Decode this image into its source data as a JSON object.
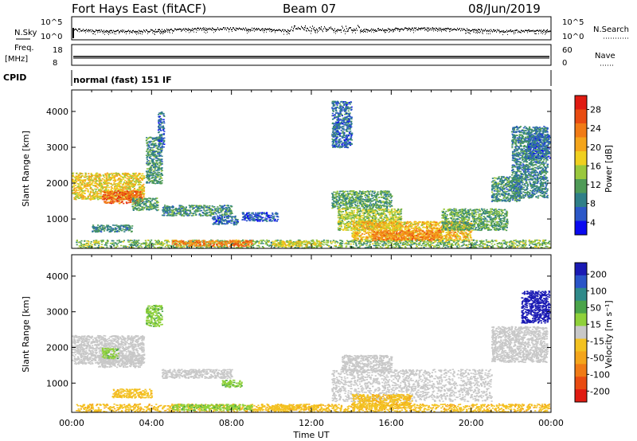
{
  "header": {
    "title": "Fort Hays East (fitACF)",
    "beam": "Beam 07",
    "date": "08/Jun/2019"
  },
  "strip_noise": {
    "left_label": "N.Sky",
    "right_label": "N.Search",
    "left_ticks": [
      "10^5",
      "10^0"
    ],
    "right_ticks": [
      "10^5",
      "10^0"
    ]
  },
  "strip_freq": {
    "left_label_1": "Freq.",
    "left_label_2": "[MHz]",
    "left_ticks": [
      "18",
      "8"
    ],
    "right_label": "Nave",
    "right_ticks": [
      "60",
      "0"
    ]
  },
  "cpid": {
    "label": "CPID",
    "text": "normal (fast) 151 IF"
  },
  "chart_data": [
    {
      "type": "heatmap",
      "name": "power-panel",
      "ylabel": "Slant Range [km]",
      "x_range_hours": [
        0,
        24
      ],
      "ylim": [
        180,
        4600
      ],
      "y_ticks": [
        "1000",
        "2000",
        "3000",
        "4000"
      ],
      "colorbar": {
        "label": "Power [dB]",
        "ticks": [
          "28",
          "24",
          "20",
          "16",
          "12",
          "8",
          "4"
        ],
        "colors": [
          "#0a0af0",
          "#2c58c8",
          "#2f7f88",
          "#4f9b57",
          "#9ac83d",
          "#f0d020",
          "#f4a51b",
          "#f17b16",
          "#e94c12",
          "#e01b12"
        ]
      },
      "regions": [
        {
          "t": [
            0.0,
            3.6
          ],
          "r": [
            1550,
            2300
          ],
          "v": 17
        },
        {
          "t": [
            1.5,
            3.5
          ],
          "r": [
            1450,
            1800
          ],
          "v": 24
        },
        {
          "t": [
            3.0,
            4.3
          ],
          "r": [
            1250,
            1600
          ],
          "v": 10
        },
        {
          "t": [
            1.0,
            3.0
          ],
          "r": [
            650,
            850
          ],
          "v": 8
        },
        {
          "t": [
            4.5,
            8.0
          ],
          "r": [
            1100,
            1400
          ],
          "v": 9
        },
        {
          "t": [
            7.0,
            8.3
          ],
          "r": [
            850,
            1100
          ],
          "v": 6
        },
        {
          "t": [
            8.5,
            10.3
          ],
          "r": [
            950,
            1200
          ],
          "v": 5
        },
        {
          "t": [
            3.7,
            4.5
          ],
          "r": [
            2000,
            3300
          ],
          "v": 9
        },
        {
          "t": [
            4.3,
            4.6
          ],
          "r": [
            3000,
            4000
          ],
          "v": 6
        },
        {
          "t": [
            13.0,
            16.0
          ],
          "r": [
            1300,
            1800
          ],
          "v": 10
        },
        {
          "t": [
            13.3,
            16.5
          ],
          "r": [
            700,
            1300
          ],
          "v": 14
        },
        {
          "t": [
            14.0,
            20.0
          ],
          "r": [
            400,
            950
          ],
          "v": 18
        },
        {
          "t": [
            15.0,
            18.5
          ],
          "r": [
            400,
            700
          ],
          "v": 22
        },
        {
          "t": [
            18.5,
            21.8
          ],
          "r": [
            700,
            1300
          ],
          "v": 11
        },
        {
          "t": [
            21.0,
            22.5
          ],
          "r": [
            1500,
            2200
          ],
          "v": 9
        },
        {
          "t": [
            22.0,
            23.8
          ],
          "r": [
            1600,
            3600
          ],
          "v": 8
        },
        {
          "t": [
            22.8,
            23.9
          ],
          "r": [
            2700,
            3400
          ],
          "v": 6
        },
        {
          "t": [
            0.2,
            23.9
          ],
          "r": [
            200,
            430
          ],
          "v": 12
        },
        {
          "t": [
            5.0,
            9.0
          ],
          "r": [
            250,
            420
          ],
          "v": 22
        },
        {
          "t": [
            10.0,
            12.5
          ],
          "r": [
            250,
            400
          ],
          "v": 16
        },
        {
          "t": [
            13.0,
            14.0
          ],
          "r": [
            3000,
            4300
          ],
          "v": 6
        }
      ]
    },
    {
      "type": "heatmap",
      "name": "velocity-panel",
      "ylabel": "Slant Range [km]",
      "xlabel": "Time UT",
      "x_range_hours": [
        0,
        24
      ],
      "x_ticks": [
        "00:00",
        "04:00",
        "08:00",
        "12:00",
        "16:00",
        "20:00",
        "00:00"
      ],
      "ylim": [
        180,
        4600
      ],
      "y_ticks": [
        "1000",
        "2000",
        "3000",
        "4000"
      ],
      "colorbar": {
        "label": "Velocity [m s⁻¹]",
        "ticks": [
          "200",
          "100",
          "50",
          "15",
          "-15",
          "-50",
          "-100",
          "-200"
        ],
        "colors": [
          "#1a1ab4",
          "#2a55c8",
          "#2f8a8a",
          "#4aa44a",
          "#8fd13a",
          "#c8c8c8",
          "#f3c221",
          "#f4a51b",
          "#f07b16",
          "#e94c12",
          "#e01b12"
        ]
      },
      "regions": [
        {
          "t": [
            0.0,
            3.6
          ],
          "r": [
            1550,
            2350
          ],
          "v": 0
        },
        {
          "t": [
            1.3,
            3.5
          ],
          "r": [
            1450,
            1800
          ],
          "v": 0
        },
        {
          "t": [
            1.5,
            2.3
          ],
          "r": [
            1700,
            2000
          ],
          "v": 30
        },
        {
          "t": [
            2.0,
            4.0
          ],
          "r": [
            600,
            850
          ],
          "v": -40
        },
        {
          "t": [
            4.5,
            8.0
          ],
          "r": [
            1150,
            1400
          ],
          "v": 0
        },
        {
          "t": [
            7.5,
            8.5
          ],
          "r": [
            900,
            1100
          ],
          "v": 30
        },
        {
          "t": [
            3.7,
            4.5
          ],
          "r": [
            2600,
            3200
          ],
          "v": 30
        },
        {
          "t": [
            13.0,
            21.0
          ],
          "r": [
            500,
            1400
          ],
          "v": 0
        },
        {
          "t": [
            13.5,
            16.0
          ],
          "r": [
            1300,
            1800
          ],
          "v": 0
        },
        {
          "t": [
            14.0,
            17.0
          ],
          "r": [
            300,
            700
          ],
          "v": -40
        },
        {
          "t": [
            21.0,
            23.8
          ],
          "r": [
            1600,
            2600
          ],
          "v": 0
        },
        {
          "t": [
            22.5,
            23.9
          ],
          "r": [
            2700,
            3600
          ],
          "v": 180
        },
        {
          "t": [
            0.2,
            23.9
          ],
          "r": [
            200,
            430
          ],
          "v": -40
        },
        {
          "t": [
            5.0,
            9.0
          ],
          "r": [
            250,
            420
          ],
          "v": 30
        },
        {
          "t": [
            10.0,
            12.5
          ],
          "r": [
            250,
            400
          ],
          "v": -40
        }
      ]
    }
  ]
}
